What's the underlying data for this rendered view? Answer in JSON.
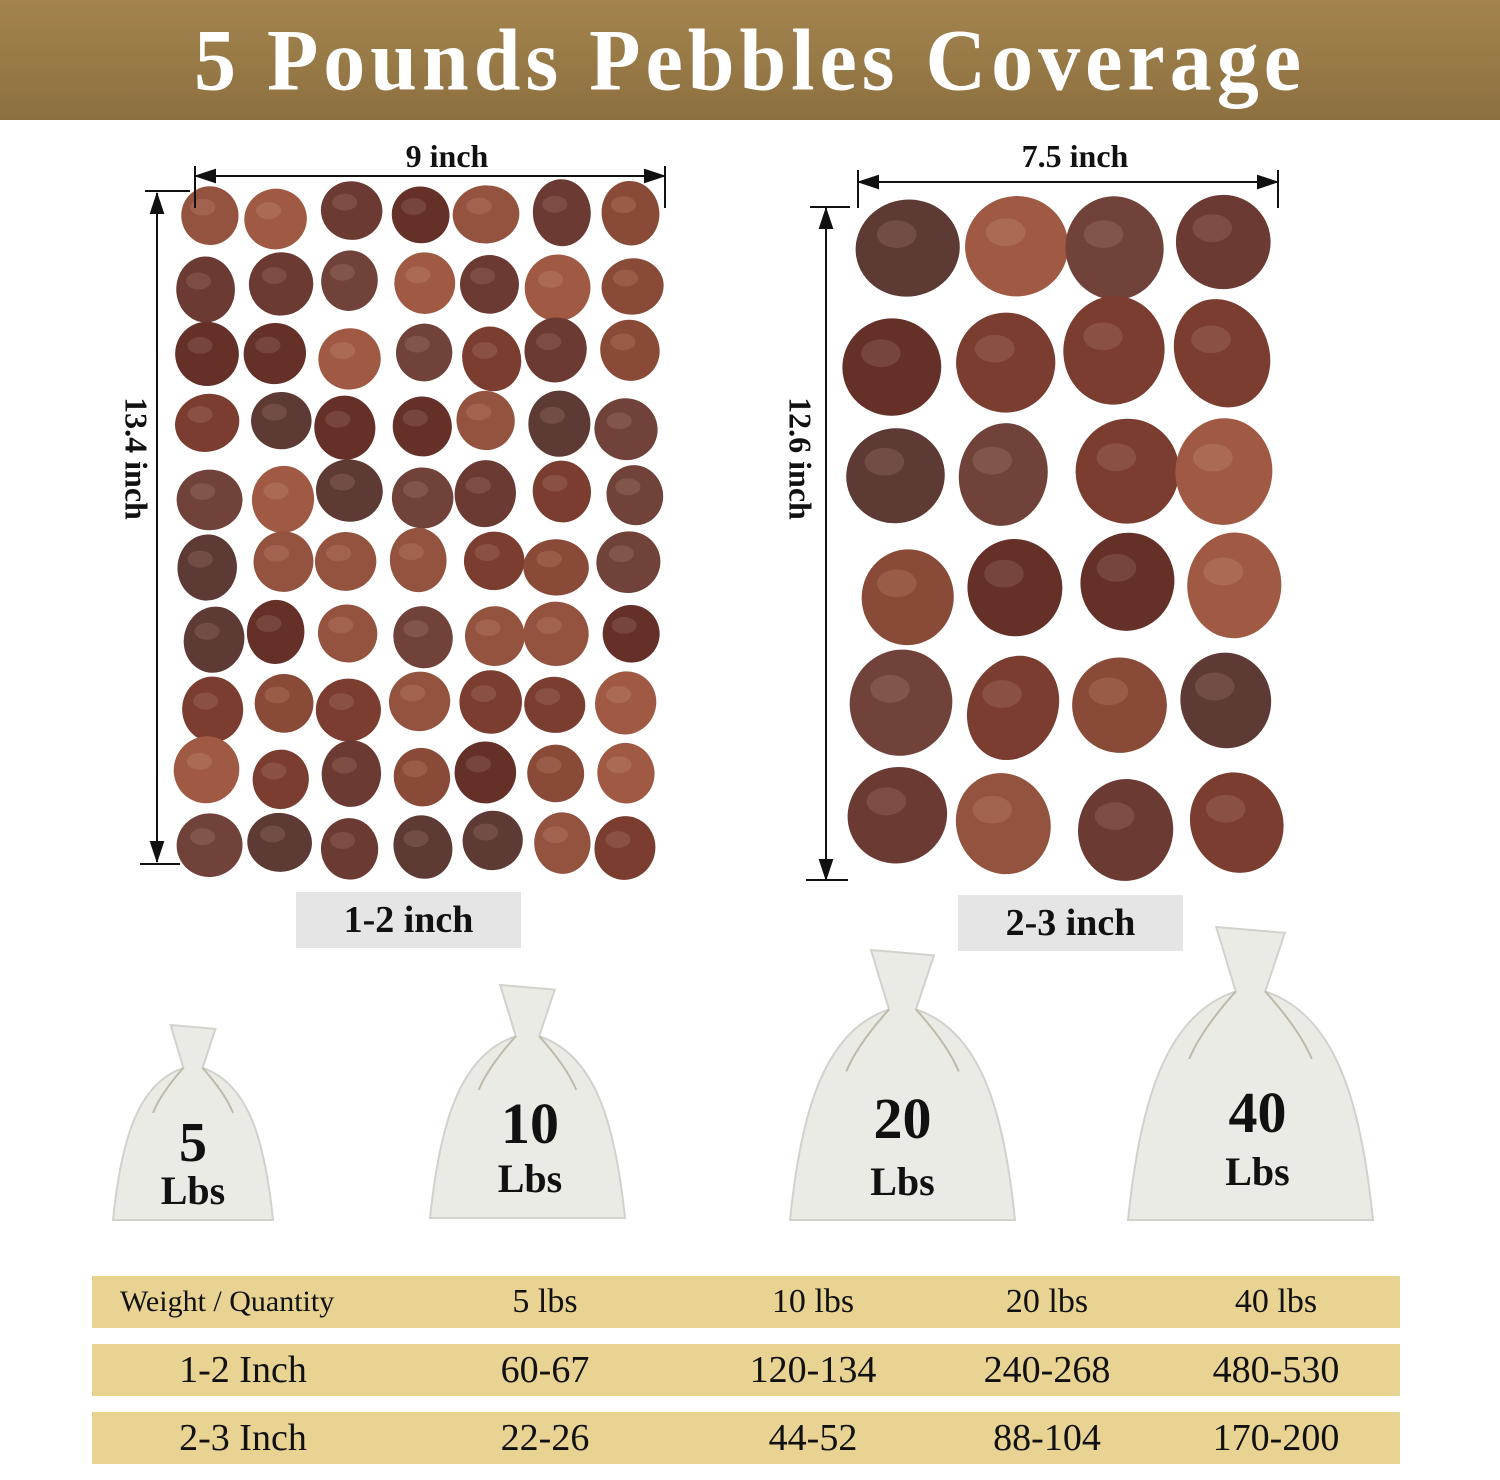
{
  "title": "5 Pounds Pebbles Coverage",
  "colors": {
    "header": "#9a7c48",
    "table_row": "#e8d393",
    "size_label_bg": "#e5e5e5",
    "pebble": "#7a3d30"
  },
  "groups": [
    {
      "width": "9 inch",
      "height": "13.4 inch",
      "size_label": "1-2 inch"
    },
    {
      "width": "7.5 inch",
      "height": "12.6 inch",
      "size_label": "2-3 inch"
    }
  ],
  "bags": [
    {
      "number": "5",
      "unit": "Lbs"
    },
    {
      "number": "10",
      "unit": "Lbs"
    },
    {
      "number": "20",
      "unit": "Lbs"
    },
    {
      "number": "40",
      "unit": "Lbs"
    }
  ],
  "table": {
    "headers": [
      "Weight / Quantity",
      "5 lbs",
      "10 lbs",
      "20 lbs",
      "40 lbs"
    ],
    "rows": [
      [
        "1-2 Inch",
        "60-67",
        "120-134",
        "240-268",
        "480-530"
      ],
      [
        "2-3 Inch",
        "22-26",
        "44-52",
        "88-104",
        "170-200"
      ]
    ]
  }
}
